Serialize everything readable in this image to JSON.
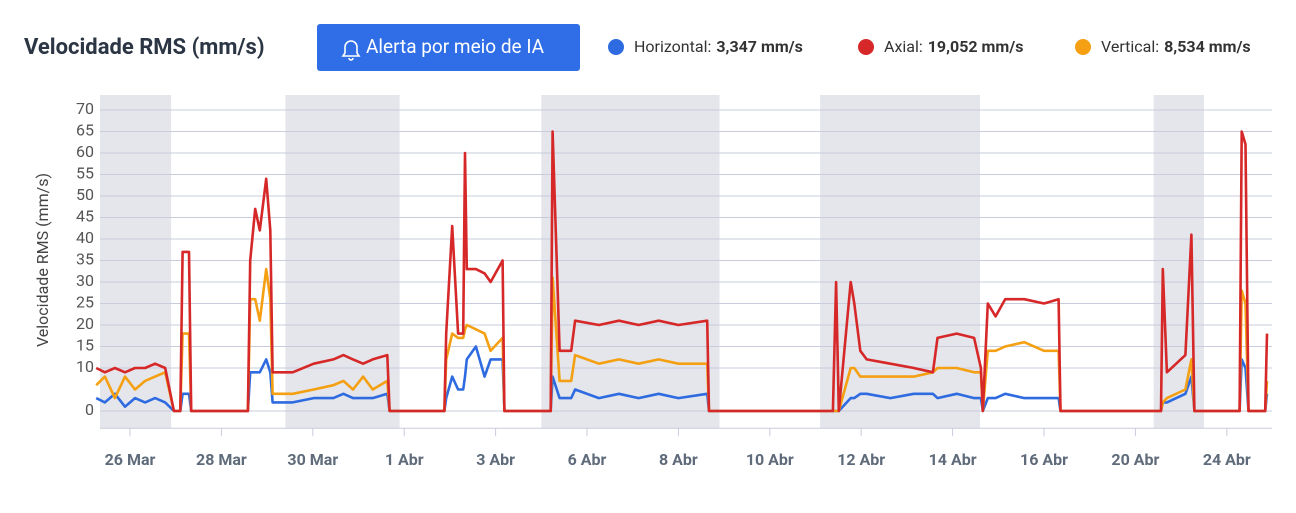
{
  "chart_data": {
    "type": "line",
    "title": "Velocidade RMS (mm/s)",
    "button": "Alerta por meio de IA",
    "y_label": "Velocidade RMS (mm/s)",
    "x": [
      -0.74,
      -0.55,
      -0.33,
      -0.11,
      0.11,
      0.33,
      0.55,
      0.77,
      0.96,
      1.1,
      1.15,
      1.29,
      1.34,
      2.58,
      2.63,
      2.74,
      2.84,
      2.98,
      3.07,
      3.12,
      3.56,
      4.02,
      4.45,
      4.67,
      4.88,
      5.1,
      5.31,
      5.63,
      5.68,
      6.88,
      6.92,
      7.05,
      7.18,
      7.29,
      7.33,
      7.37,
      7.57,
      7.76,
      7.89,
      8.23,
      8.29,
      9.81,
      9.87,
      10.1,
      10.48,
      10.61,
      11.26,
      11.7,
      12.13,
      12.57,
      13.0,
      13.63,
      13.67,
      16.38,
      16.45,
      16.51,
      16.77,
      16.85,
      16.98,
      17.12,
      17.64,
      18.15,
      18.57,
      18.67,
      19.09,
      19.47,
      19.62,
      19.66,
      19.77,
      19.94,
      20.15,
      20.57,
      21.0,
      21.64,
      21.72,
      26.12,
      26.2,
      26.38,
      27.19,
      27.45,
      27.58,
      29.56,
      29.65,
      29.82,
      29.95,
      30.68,
      30.76
    ],
    "series": [
      {
        "name": "Horizontal:",
        "summary": "3,347 mm/s",
        "color": "#2f6be0",
        "values": [
          3,
          2,
          4,
          1,
          3,
          2,
          3,
          2,
          0,
          0,
          4,
          4,
          0,
          0,
          9,
          9,
          9,
          12,
          9,
          2,
          2,
          3,
          3,
          4,
          3,
          3,
          3,
          4,
          0,
          0,
          3,
          8,
          5,
          5,
          8,
          12,
          15,
          8,
          12,
          12,
          0,
          0,
          8,
          3,
          3,
          5,
          3,
          4,
          3,
          4,
          3,
          4,
          0,
          0,
          0,
          0,
          3,
          3,
          4,
          4,
          3,
          4,
          4,
          3,
          4,
          3,
          3,
          0,
          3,
          3,
          4,
          3,
          3,
          3,
          0,
          0,
          2,
          2,
          4,
          8,
          0,
          0,
          12,
          10,
          0,
          0,
          4
        ]
      },
      {
        "name": "Axial:",
        "summary": "19,052 mm/s",
        "color": "#d62828",
        "values": [
          10,
          9,
          10,
          9,
          10,
          10,
          11,
          10,
          0,
          0,
          37,
          37,
          0,
          0,
          35,
          47,
          42,
          54,
          42,
          9,
          9,
          11,
          12,
          13,
          12,
          11,
          12,
          13,
          0,
          0,
          18,
          43,
          18,
          18,
          60,
          33,
          33,
          32,
          30,
          35,
          0,
          0,
          65,
          14,
          14,
          21,
          20,
          21,
          20,
          21,
          20,
          21,
          0,
          0,
          30,
          0,
          30,
          25,
          14,
          12,
          11,
          10,
          9,
          17,
          18,
          17,
          10,
          0,
          25,
          22,
          26,
          26,
          25,
          26,
          0,
          0,
          33,
          9,
          13,
          41,
          0,
          0,
          65,
          62,
          0,
          0,
          18
        ]
      },
      {
        "name": "Vertical:",
        "summary": "8,534 mm/s",
        "color": "#f4a012",
        "values": [
          6,
          8,
          3,
          8,
          5,
          7,
          8,
          9,
          0,
          0,
          18,
          18,
          0,
          0,
          26,
          26,
          21,
          33,
          26,
          4,
          4,
          5,
          6,
          7,
          5,
          8,
          5,
          7,
          0,
          0,
          12,
          18,
          17,
          17,
          19,
          20,
          19,
          18,
          14,
          17,
          0,
          0,
          31,
          7,
          7,
          13,
          11,
          12,
          11,
          12,
          11,
          11,
          0,
          0,
          0,
          0,
          10,
          10,
          8,
          8,
          8,
          8,
          9,
          10,
          10,
          9,
          9,
          0,
          14,
          14,
          15,
          16,
          14,
          14,
          0,
          0,
          2,
          3,
          5,
          12,
          0,
          0,
          28,
          25,
          0,
          0,
          7
        ]
      }
    ],
    "xlim": [
      -0.8,
      30.9
    ],
    "xticks": [
      {
        "value": 0,
        "label": "26 Mar"
      },
      {
        "value": 2,
        "label": "28 Mar"
      },
      {
        "value": 4,
        "label": "30 Mar"
      },
      {
        "value": 6,
        "label": "1 Abr"
      },
      {
        "value": 8,
        "label": "3 Abr"
      },
      {
        "value": 11,
        "label": "6 Abr"
      },
      {
        "value": 13,
        "label": "8 Abr"
      },
      {
        "value": 15,
        "label": "10 Abr"
      },
      {
        "value": 17,
        "label": "12 Abr"
      },
      {
        "value": 19,
        "label": "14 Abr"
      },
      {
        "value": 21,
        "label": "16 Abr"
      },
      {
        "value": 25,
        "label": "20 Abr"
      },
      {
        "value": 29,
        "label": "24 Abr"
      }
    ],
    "ylim": [
      -4,
      72
    ],
    "yticks": [
      0,
      10,
      15,
      20,
      25,
      30,
      35,
      40,
      45,
      50,
      55,
      60,
      65,
      70
    ],
    "shaded_ranges": [
      [
        -0.8,
        0.9
      ],
      [
        3.4,
        5.9
      ],
      [
        9.5,
        13.9
      ],
      [
        16.1,
        19.6
      ],
      [
        25.8,
        28
      ]
    ],
    "grid": true
  }
}
